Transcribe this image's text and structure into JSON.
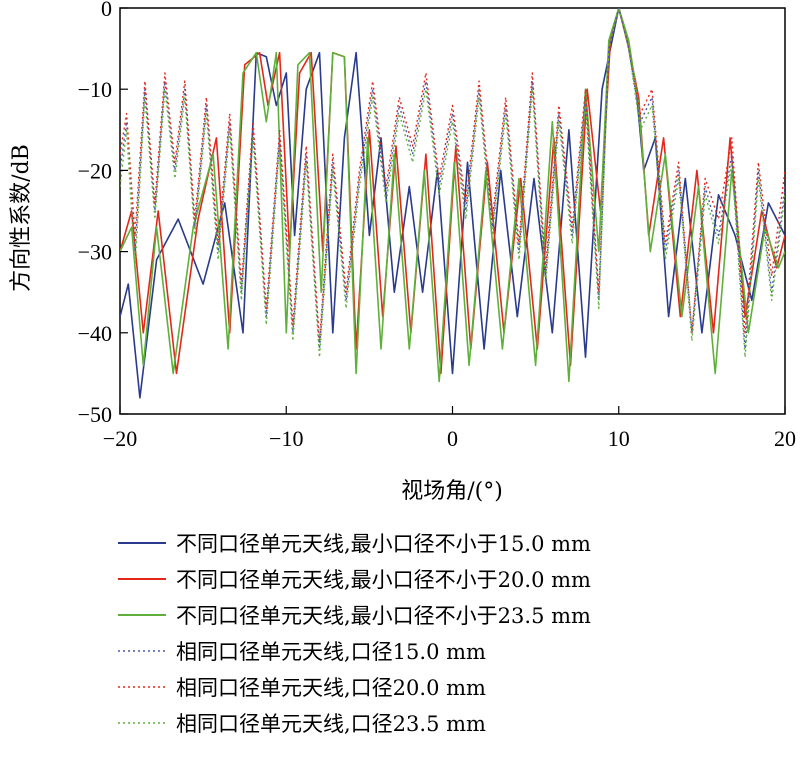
{
  "chart_data": {
    "type": "line",
    "xlabel": "视场角/(°)",
    "ylabel": "方向性系数/dB",
    "xlim": [
      -20,
      20
    ],
    "ylim": [
      -50,
      0
    ],
    "xticks": [
      -20,
      -10,
      0,
      10,
      20
    ],
    "yticks": [
      0,
      -10,
      -20,
      -30,
      -40,
      -50
    ],
    "xtick_labels": [
      "−20",
      "−10",
      "0",
      "10",
      "20"
    ],
    "ytick_labels": [
      "0",
      "−10",
      "−20",
      "−30",
      "−40",
      "−50"
    ],
    "grid": false,
    "legend_position": "bottom",
    "series": [
      {
        "name": "不同口径单元天线,最小口径不小于15.0 mm",
        "color": "#2a3a8c",
        "style": "solid",
        "x": [
          -20,
          -19.5,
          -18.8,
          -17.8,
          -16.5,
          -15,
          -13.7,
          -12.6,
          -11.8,
          -11.2,
          -10.6,
          -10,
          -9.5,
          -8.8,
          -8,
          -7.2,
          -6.5,
          -5.8,
          -5,
          -4.3,
          -3.5,
          -2.6,
          -1.8,
          -0.9,
          0,
          0.9,
          1.9,
          2.9,
          3.9,
          4.9,
          6,
          7,
          8,
          9,
          9.5,
          10,
          10.5,
          11,
          11.5,
          12.2,
          13,
          14,
          15,
          16,
          17,
          18,
          19,
          20
        ],
        "values": [
          -38,
          -34,
          -48,
          -31,
          -26,
          -34,
          -24,
          -40,
          -5.5,
          -6,
          -12,
          -8,
          -28,
          -10,
          -5.5,
          -40,
          -16,
          -5.5,
          -28,
          -16,
          -35,
          -22,
          -35,
          -20,
          -45,
          -19,
          -42,
          -20,
          -38,
          -21,
          -40,
          -15,
          -43,
          -10,
          -5,
          0,
          -4,
          -9,
          -20,
          -16,
          -38,
          -21,
          -40,
          -23,
          -28,
          -36,
          -24,
          -28
        ]
      },
      {
        "name": "不同口径单元天线,最小口径不小于20.0 mm",
        "color": "#e3281b",
        "style": "solid",
        "x": [
          -20,
          -19.3,
          -18.6,
          -17.7,
          -16.6,
          -15.3,
          -14.2,
          -13.4,
          -12.5,
          -11.6,
          -11.1,
          -10.4,
          -9.8,
          -9.2,
          -8.5,
          -7.8,
          -7.2,
          -6.5,
          -5.8,
          -5,
          -4.2,
          -3.4,
          -2.5,
          -1.6,
          -0.7,
          0.2,
          1.1,
          2.1,
          3.1,
          4.1,
          5.1,
          6.1,
          7.1,
          8.1,
          8.9,
          9.5,
          10,
          10.5,
          11.2,
          11.8,
          12.7,
          13.7,
          14.7,
          15.7,
          16.7,
          17.6,
          18.6,
          19.5,
          20
        ],
        "values": [
          -30,
          -25,
          -40,
          -25,
          -45,
          -26,
          -16,
          -40,
          -7,
          -5.5,
          -12,
          -5.5,
          -30,
          -8,
          -5.5,
          -30,
          -5.5,
          -6,
          -42,
          -15,
          -38,
          -17,
          -40,
          -18,
          -45,
          -17,
          -42,
          -19,
          -40,
          -21,
          -42,
          -16,
          -44,
          -10,
          -25,
          -4,
          0,
          -4,
          -11,
          -28,
          -16,
          -38,
          -20,
          -40,
          -16,
          -38,
          -25,
          -32,
          -28
        ]
      },
      {
        "name": "不同口径单元天线,最小口径不小于23.5 mm",
        "color": "#5fb03a",
        "style": "solid",
        "x": [
          -20,
          -19.3,
          -18.6,
          -17.8,
          -16.8,
          -15.6,
          -14.4,
          -13.5,
          -12.6,
          -11.8,
          -11.2,
          -10.6,
          -10,
          -9.3,
          -8.6,
          -7.9,
          -7.2,
          -6.5,
          -5.8,
          -5.1,
          -4.3,
          -3.5,
          -2.6,
          -1.7,
          -0.8,
          0.1,
          1,
          2,
          3,
          4,
          5,
          6,
          7,
          8,
          8.8,
          9.4,
          10,
          10.6,
          11.2,
          11.9,
          12.8,
          13.8,
          14.8,
          15.8,
          16.8,
          17.8,
          18.8,
          19.6,
          20
        ],
        "values": [
          -30,
          -27,
          -44,
          -27,
          -45,
          -27,
          -18,
          -42,
          -8,
          -5.5,
          -14,
          -5.5,
          -40,
          -7,
          -5.5,
          -35,
          -5.5,
          -6,
          -45,
          -16,
          -42,
          -18,
          -42,
          -20,
          -46,
          -19,
          -44,
          -20,
          -42,
          -21,
          -44,
          -14,
          -46,
          -10,
          -30,
          -4,
          0,
          -4,
          -12,
          -30,
          -18,
          -38,
          -22,
          -45,
          -20,
          -40,
          -27,
          -32,
          -30
        ]
      },
      {
        "name": "相同口径单元天线,口径15.0 mm",
        "color": "#4a5aaa",
        "style": "dotted",
        "x": [
          -20,
          -19.6,
          -19.1,
          -18.5,
          -17.9,
          -17.3,
          -16.7,
          -16.1,
          -15.5,
          -14.8,
          -14.1,
          -13.4,
          -12.7,
          -12,
          -11.2,
          -10.4,
          -9.6,
          -8.8,
          -8,
          -7.2,
          -6.4,
          -5.6,
          -4.8,
          -4,
          -3.2,
          -2.4,
          -1.6,
          -0.8,
          0,
          0.8,
          1.6,
          2.4,
          3.2,
          4,
          4.8,
          5.6,
          6.4,
          7.2,
          8,
          8.8,
          9.4,
          10,
          10.6,
          11.3,
          12,
          12.8,
          13.6,
          14.4,
          15.2,
          16,
          16.8,
          17.6,
          18.4,
          19.2,
          20
        ],
        "values": [
          -20,
          -14,
          -30,
          -10,
          -25,
          -9,
          -20,
          -10,
          -27,
          -12,
          -30,
          -14,
          -35,
          -15,
          -38,
          -16,
          -40,
          -18,
          -42,
          -19,
          -36,
          -21,
          -10,
          -23,
          -12,
          -18,
          -9,
          -22,
          -13,
          -25,
          -10,
          -27,
          -12,
          -30,
          -9,
          -33,
          -13,
          -28,
          -11,
          -36,
          -5,
          0,
          -5,
          -14,
          -11,
          -30,
          -20,
          -40,
          -22,
          -28,
          -18,
          -42,
          -20,
          -35,
          -22
        ]
      },
      {
        "name": "相同口径单元天线,口径20.0 mm",
        "color": "#e3281b",
        "style": "dotted",
        "x": [
          -20,
          -19.6,
          -19.1,
          -18.5,
          -17.9,
          -17.3,
          -16.7,
          -16.1,
          -15.5,
          -14.8,
          -14.1,
          -13.4,
          -12.7,
          -12,
          -11.2,
          -10.4,
          -9.6,
          -8.8,
          -8,
          -7.2,
          -6.4,
          -5.6,
          -4.8,
          -4,
          -3.2,
          -2.4,
          -1.6,
          -0.8,
          0,
          0.8,
          1.6,
          2.4,
          3.2,
          4,
          4.8,
          5.6,
          6.4,
          7.2,
          8,
          8.8,
          9.4,
          10,
          10.6,
          11.3,
          12,
          12.8,
          13.6,
          14.4,
          15.2,
          16,
          16.8,
          17.6,
          18.4,
          19.2,
          20
        ],
        "values": [
          -18,
          -13,
          -28,
          -9,
          -24,
          -8,
          -19,
          -9,
          -26,
          -11,
          -29,
          -13,
          -34,
          -14,
          -37,
          -15,
          -39,
          -17,
          -41,
          -18,
          -35,
          -20,
          -9,
          -22,
          -11,
          -17,
          -8,
          -21,
          -12,
          -24,
          -9,
          -26,
          -11,
          -29,
          -8,
          -32,
          -12,
          -27,
          -10,
          -35,
          -5,
          0,
          -5,
          -13,
          -10,
          -29,
          -19,
          -40,
          -21,
          -26,
          -16,
          -40,
          -19,
          -33,
          -20
        ]
      },
      {
        "name": "相同口径单元天线,口径23.5 mm",
        "color": "#5fb03a",
        "style": "dotted",
        "x": [
          -20,
          -19.6,
          -19.1,
          -18.5,
          -17.9,
          -17.3,
          -16.7,
          -16.1,
          -15.5,
          -14.8,
          -14.1,
          -13.4,
          -12.7,
          -12,
          -11.2,
          -10.4,
          -9.6,
          -8.8,
          -8,
          -7.2,
          -6.4,
          -5.6,
          -4.8,
          -4,
          -3.2,
          -2.4,
          -1.6,
          -0.8,
          0,
          0.8,
          1.6,
          2.4,
          3.2,
          4,
          4.8,
          5.6,
          6.4,
          7.2,
          8,
          8.8,
          9.4,
          10,
          10.6,
          11.3,
          12,
          12.8,
          13.6,
          14.4,
          15.2,
          16,
          16.8,
          17.6,
          18.4,
          19.2,
          20
        ],
        "values": [
          -22,
          -15,
          -32,
          -11,
          -26,
          -10,
          -21,
          -11,
          -28,
          -13,
          -31,
          -15,
          -36,
          -16,
          -39,
          -17,
          -41,
          -19,
          -43,
          -20,
          -37,
          -22,
          -11,
          -24,
          -13,
          -19,
          -10,
          -23,
          -14,
          -26,
          -11,
          -28,
          -13,
          -31,
          -10,
          -34,
          -14,
          -29,
          -12,
          -37,
          -5,
          0,
          -5,
          -15,
          -12,
          -31,
          -21,
          -41,
          -23,
          -29,
          -19,
          -43,
          -21,
          -36,
          -23
        ]
      }
    ]
  }
}
